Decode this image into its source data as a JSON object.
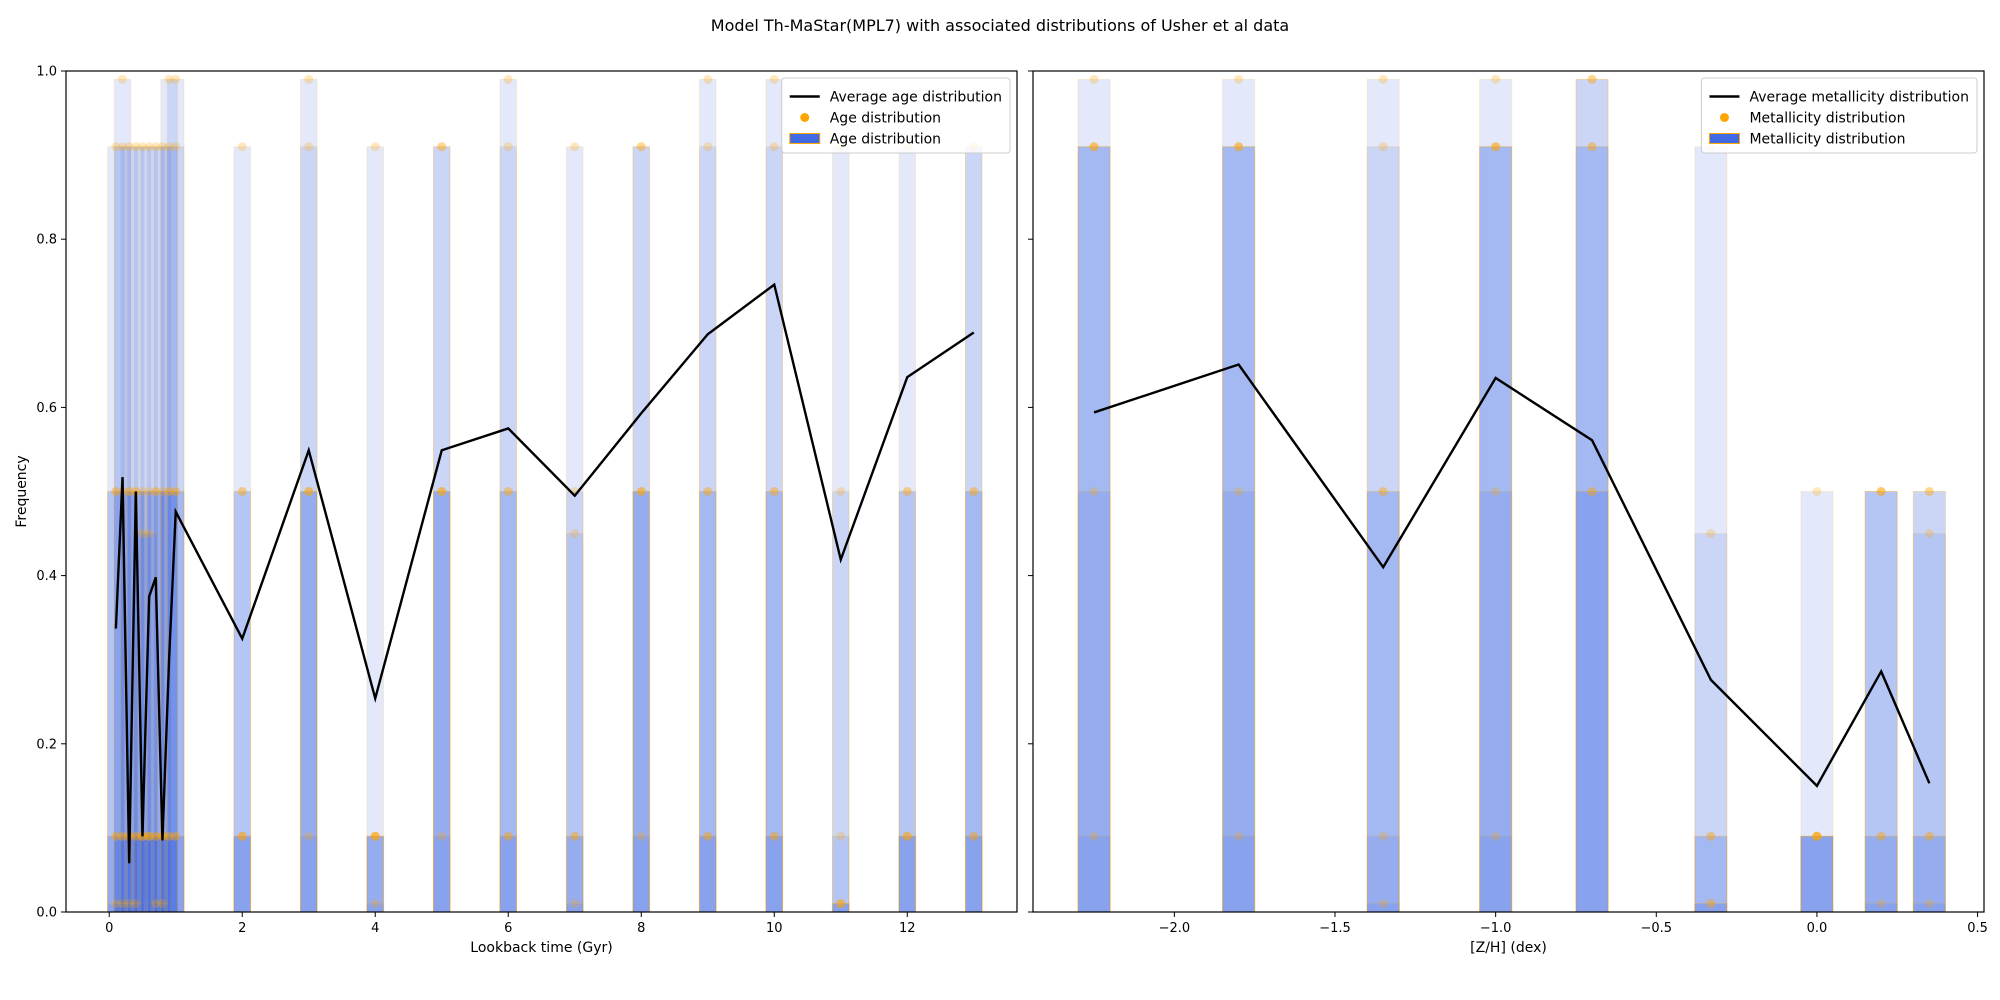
{
  "figure_title": "Model Th-MaStar(MPL7) with associated distributions of Usher et al data",
  "colors": {
    "bar_fill": "#4169e1",
    "bar_edge": "#ffa500",
    "marker": "#ffa500",
    "line": "#000000"
  },
  "chart_data": [
    {
      "type": "bar",
      "xlabel": "Lookback time (Gyr)",
      "ylabel": "Frequency",
      "xlim": [
        -0.65,
        13.65
      ],
      "ylim": [
        0,
        1.0
      ],
      "bar_width": 0.25,
      "xticks": [
        0,
        2,
        4,
        6,
        8,
        10,
        12
      ],
      "xtick_labels": [
        "0",
        "2",
        "4",
        "6",
        "8",
        "10",
        "12"
      ],
      "yticks": [
        0.0,
        0.2,
        0.4,
        0.6,
        0.8,
        1.0
      ],
      "ytick_labels": [
        "0.0",
        "0.2",
        "0.4",
        "0.6",
        "0.8",
        "1.0"
      ],
      "legend_position": "top-right",
      "legend": [
        "Average age distribution",
        "Age distribution",
        "Age distribution"
      ],
      "bin_centers": [
        0.1,
        0.2,
        0.3,
        0.4,
        0.5,
        0.6,
        0.7,
        0.8,
        0.9,
        1,
        2,
        3,
        4,
        5,
        6,
        7,
        8,
        9,
        10,
        11,
        12,
        13
      ],
      "bar_series": [
        {
          "name": "Age distribution",
          "alpha": 0.15,
          "values": [
            0.91,
            0.99,
            0.91,
            0.5,
            0.91,
            0.5,
            0.91,
            0.5,
            0.99,
            0.99,
            0.5,
            0.99,
            0.91,
            0.5,
            0.99,
            0.5,
            0.5,
            0.99,
            0.99,
            0.5,
            0.5,
            0.5
          ]
        },
        {
          "name": "Age distribution",
          "alpha": 0.15,
          "values": [
            0.5,
            0.91,
            0.5,
            0.91,
            0.5,
            0.91,
            0.5,
            0.91,
            0.5,
            0.91,
            0.91,
            0.91,
            0.09,
            0.91,
            0.91,
            0.91,
            0.91,
            0.91,
            0.91,
            0.91,
            0.91,
            0.91
          ]
        },
        {
          "name": "Age distribution",
          "alpha": 0.15,
          "values": [
            0.09,
            0.5,
            0.09,
            0.09,
            0.45,
            0.09,
            0.5,
            0.09,
            0.91,
            0.5,
            0.09,
            0.5,
            0.09,
            0.5,
            0.5,
            0.45,
            0.5,
            0.5,
            0.5,
            0.09,
            0.5,
            0.91
          ]
        },
        {
          "name": "Age distribution",
          "alpha": 0.15,
          "values": [
            0.5,
            0.09,
            0.09,
            0.5,
            0.09,
            0.45,
            0.09,
            0.09,
            0.5,
            0.09,
            0.5,
            0.5,
            0.09,
            0.91,
            0.5,
            0.09,
            0.91,
            0.5,
            0.5,
            0.01,
            0.09,
            0.5
          ]
        },
        {
          "name": "Age distribution",
          "alpha": 0.15,
          "values": [
            0.09,
            0.01,
            0.5,
            0.09,
            0.09,
            0.09,
            0.01,
            0.09,
            0.09,
            0.5,
            0.09,
            0.09,
            0.09,
            0.09,
            0.09,
            0.09,
            0.5,
            0.09,
            0.09,
            0.01,
            0.09,
            0.09
          ]
        },
        {
          "name": "Age distribution",
          "alpha": 0.15,
          "values": [
            0.01,
            0.09,
            0.01,
            0.01,
            0.09,
            0.09,
            0.09,
            0.01,
            0.09,
            0.09,
            0.09,
            0.5,
            0.01,
            0.5,
            0.09,
            0.01,
            0.09,
            0.09,
            0.09,
            0.01,
            0.09,
            0.09
          ]
        }
      ],
      "average_line": {
        "name": "Average age distribution",
        "x": [
          0.1,
          0.2,
          0.3,
          0.4,
          0.5,
          0.6,
          0.7,
          0.8,
          0.9,
          1,
          2,
          3,
          4,
          5,
          6,
          7,
          8,
          9,
          10,
          11,
          12,
          13
        ],
        "y": [
          0.337,
          0.517,
          0.058,
          0.5,
          0.09,
          0.375,
          0.398,
          0.085,
          0.3,
          0.476,
          0.325,
          0.549,
          0.254,
          0.549,
          0.575,
          0.495,
          0.593,
          0.687,
          0.746,
          0.419,
          0.636,
          0.689
        ]
      }
    },
    {
      "type": "bar",
      "xlabel": "[Z/H] (dex)",
      "ylabel": "",
      "xlim": [
        -2.44,
        0.52
      ],
      "ylim": [
        0,
        1.0
      ],
      "bar_width": 0.1,
      "xticks": [
        -2.0,
        -1.5,
        -1.0,
        -0.5,
        0.0,
        0.5
      ],
      "xtick_labels": [
        "−2.0",
        "−1.5",
        "−1.0",
        "−0.5",
        "0.0",
        "0.5"
      ],
      "yticks": [
        0.0,
        0.2,
        0.4,
        0.6,
        0.8,
        1.0
      ],
      "legend_position": "top-right",
      "legend": [
        "Average metallicity distribution",
        "Metallicity distribution",
        "Metallicity distribution"
      ],
      "bin_centers": [
        -2.25,
        -1.8,
        -1.35,
        -1.0,
        -0.7,
        -0.33,
        0.0,
        0.2,
        0.35
      ],
      "bar_series": [
        {
          "name": "Metallicity distribution",
          "alpha": 0.15,
          "values": [
            0.99,
            0.99,
            0.99,
            0.99,
            0.99,
            0.91,
            0.5,
            0.5,
            0.5
          ]
        },
        {
          "name": "Metallicity distribution",
          "alpha": 0.15,
          "values": [
            0.91,
            0.91,
            0.91,
            0.91,
            0.91,
            0.45,
            0.09,
            0.5,
            0.45
          ]
        },
        {
          "name": "Metallicity distribution",
          "alpha": 0.15,
          "values": [
            0.91,
            0.91,
            0.5,
            0.91,
            0.99,
            0.09,
            0.09,
            0.09,
            0.5
          ]
        },
        {
          "name": "Metallicity distribution",
          "alpha": 0.15,
          "values": [
            0.91,
            0.5,
            0.5,
            0.91,
            0.5,
            0.09,
            0.09,
            0.5,
            0.09
          ]
        },
        {
          "name": "Metallicity distribution",
          "alpha": 0.15,
          "values": [
            0.5,
            0.91,
            0.09,
            0.5,
            0.91,
            0.01,
            0.09,
            0.09,
            0.09
          ]
        },
        {
          "name": "Metallicity distribution",
          "alpha": 0.15,
          "values": [
            0.09,
            0.09,
            0.01,
            0.09,
            0.5,
            0.01,
            0.09,
            0.01,
            0.01
          ]
        }
      ],
      "average_line": {
        "name": "Average metallicity distribution",
        "x": [
          -2.25,
          -1.8,
          -1.35,
          -1.0,
          -0.7,
          -0.33,
          0.0,
          0.2,
          0.35
        ],
        "y": [
          0.594,
          0.651,
          0.41,
          0.635,
          0.561,
          0.276,
          0.15,
          0.286,
          0.153
        ]
      }
    }
  ]
}
